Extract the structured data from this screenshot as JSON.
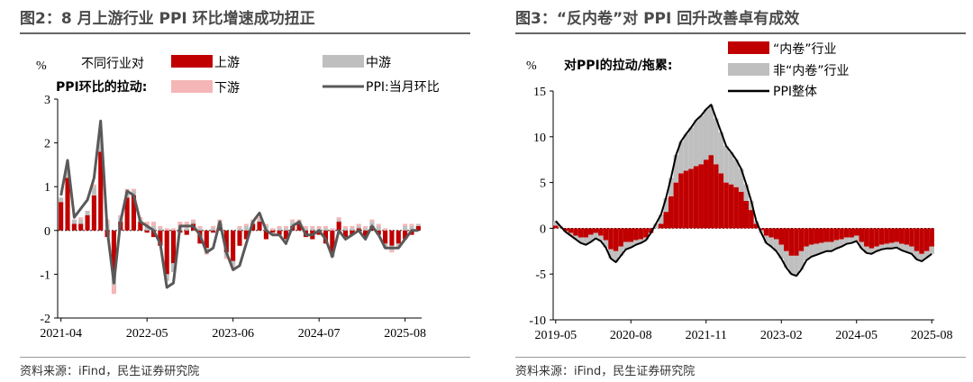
{
  "chart_data": [
    {
      "type": "bar",
      "title": "图2：8 月上游行业 PPI 环比增速成功扭正",
      "unit_label": "%",
      "ylabel_line1": "不同行业对",
      "ylabel_line2": "PPI环比的拉动:",
      "source": "资料来源：iFind，民生证券研究院",
      "ylim": [
        -2,
        3
      ],
      "yticks": [
        "3",
        "2",
        "1",
        "0",
        "-1",
        "-2"
      ],
      "ytick_values": [
        3,
        2,
        1,
        0,
        -1,
        -2
      ],
      "xtick_labels": [
        "2021-04",
        "2022-05",
        "2023-06",
        "2024-07",
        "2025-08"
      ],
      "xtick_indices": [
        0,
        13,
        26,
        39,
        52
      ],
      "legend": [
        "上游",
        "中游",
        "下游",
        "PPI:当月环比"
      ],
      "colors": {
        "upstream": "#c00000",
        "midstream": "#bfbfbf",
        "downstream": "#f4b6b6",
        "line": "#595959"
      },
      "series": [
        {
          "name": "上游",
          "values": [
            0.65,
            1.2,
            0.15,
            0.15,
            0.35,
            0.8,
            1.8,
            -0.15,
            -1.0,
            0.2,
            0.75,
            0.8,
            0.2,
            -0.05,
            -0.15,
            -0.35,
            -1.0,
            -0.75,
            -0.05,
            -0.1,
            0.15,
            -0.3,
            -0.4,
            -0.05,
            0.15,
            -0.5,
            -0.7,
            -0.35,
            -0.2,
            0.15,
            0.2,
            -0.2,
            -0.05,
            -0.1,
            -0.2,
            0.1,
            0.15,
            -0.15,
            -0.2,
            -0.1,
            -0.3,
            -0.5,
            0.2,
            -0.15,
            -0.1,
            0.05,
            -0.15,
            0.1,
            -0.1,
            -0.3,
            -0.35,
            -0.3,
            -0.2,
            -0.1,
            0.1
          ]
        },
        {
          "name": "中游",
          "values": [
            0.1,
            0.2,
            0.1,
            0.1,
            0.1,
            0.2,
            0.3,
            0.15,
            -0.25,
            0.1,
            0.15,
            0.1,
            0.05,
            0.1,
            0.1,
            0.05,
            -0.15,
            -0.2,
            0.1,
            0.05,
            0.05,
            0.05,
            -0.1,
            0.05,
            0.05,
            -0.1,
            -0.1,
            0.05,
            0.1,
            0.05,
            0.05,
            0.1,
            -0.05,
            0.05,
            0.05,
            0.1,
            0.05,
            0.05,
            0.05,
            0.05,
            0.05,
            -0.1,
            0.05,
            0.05,
            0.05,
            0.05,
            0.05,
            0.1,
            0.1,
            -0.1,
            -0.1,
            -0.05,
            0.1,
            0.1,
            0.05
          ]
        },
        {
          "name": "下游",
          "values": [
            0.0,
            0.0,
            0.0,
            0.05,
            0.0,
            0.05,
            0.1,
            0.1,
            -0.2,
            0.05,
            0.05,
            0.05,
            0.05,
            0.1,
            0.1,
            0.05,
            0.05,
            0.05,
            0.1,
            0.15,
            0.05,
            0.05,
            -0.05,
            0.05,
            0.05,
            -0.05,
            -0.05,
            0.05,
            0.05,
            0.05,
            0.05,
            0.05,
            0.05,
            0.05,
            0.05,
            0.05,
            0.05,
            0.05,
            0.05,
            0.05,
            0.05,
            0.05,
            0.05,
            0.05,
            0.05,
            0.05,
            0.05,
            0.05,
            0.05,
            0.05,
            -0.05,
            -0.05,
            0.05,
            0.05,
            0.0
          ]
        },
        {
          "name": "PPI:当月环比",
          "values": [
            0.8,
            1.6,
            0.3,
            0.5,
            0.7,
            1.2,
            2.5,
            0.0,
            -1.2,
            0.2,
            0.9,
            0.8,
            0.2,
            0.1,
            0.0,
            -0.3,
            -1.3,
            -1.2,
            0.1,
            0.1,
            0.1,
            -0.1,
            -0.5,
            -0.4,
            0.2,
            -0.5,
            -0.9,
            -0.8,
            -0.3,
            0.2,
            0.4,
            0.0,
            -0.1,
            -0.1,
            -0.3,
            0.1,
            0.2,
            -0.1,
            -0.1,
            0.0,
            -0.2,
            -0.6,
            0.0,
            -0.2,
            -0.1,
            0.0,
            -0.2,
            0.1,
            -0.1,
            -0.4,
            -0.4,
            -0.4,
            -0.2,
            0.0,
            0.0
          ]
        }
      ]
    },
    {
      "type": "area",
      "title": "图3：“反内卷”对 PPI 回升改善卓有成效",
      "unit_label": "%",
      "ylabel": "对PPI的拉动/拖累:",
      "source": "资料来源：iFind，民生证券研究院",
      "ylim": [
        -10,
        15
      ],
      "yticks": [
        "15",
        "10",
        "5",
        "0",
        "-5",
        "-10"
      ],
      "ytick_values": [
        15,
        10,
        5,
        0,
        -5,
        -10
      ],
      "xtick_labels": [
        "2019-05",
        "2020-08",
        "2021-11",
        "2023-02",
        "2024-05",
        "2025-08"
      ],
      "xtick_indices": [
        0,
        15,
        30,
        45,
        60,
        75
      ],
      "legend": [
        "“内卷”行业",
        "非“内卷”行业",
        "PPI整体"
      ],
      "colors": {
        "involution": "#c00000",
        "non_involution": "#bfbfbf",
        "total": "#000000"
      },
      "series": [
        {
          "name": "“内卷”行业",
          "values": [
            0.3,
            0.0,
            -0.3,
            -0.5,
            -0.8,
            -1.0,
            -1.0,
            -0.7,
            -0.5,
            -0.8,
            -1.3,
            -2.3,
            -2.5,
            -2.0,
            -1.5,
            -1.5,
            -1.3,
            -1.2,
            -1.0,
            -0.5,
            0.0,
            0.5,
            1.8,
            3.5,
            5.0,
            6.0,
            6.3,
            6.5,
            6.8,
            7.0,
            7.5,
            8.0,
            7.0,
            6.0,
            5.0,
            4.8,
            4.5,
            4.0,
            3.0,
            2.0,
            0.5,
            -0.2,
            -0.8,
            -1.0,
            -1.2,
            -1.8,
            -2.5,
            -3.0,
            -3.0,
            -2.5,
            -2.0,
            -1.8,
            -1.7,
            -1.6,
            -1.5,
            -1.5,
            -1.3,
            -1.2,
            -1.0,
            -1.0,
            -0.8,
            -1.5,
            -2.0,
            -2.2,
            -2.0,
            -1.8,
            -1.7,
            -1.6,
            -1.5,
            -1.7,
            -1.8,
            -2.0,
            -2.5,
            -2.8,
            -2.5,
            -2.0
          ]
        },
        {
          "name": "非“内卷”行业",
          "values": [
            0.5,
            0.2,
            -0.1,
            -0.3,
            -0.4,
            -0.6,
            -0.8,
            -0.8,
            -0.6,
            -0.6,
            -0.8,
            -1.0,
            -1.2,
            -1.0,
            -0.8,
            -0.6,
            -0.5,
            -0.4,
            -0.3,
            0.0,
            0.5,
            1.0,
            1.5,
            2.0,
            3.0,
            3.5,
            4.0,
            4.5,
            5.0,
            5.3,
            5.5,
            5.5,
            5.0,
            4.5,
            4.0,
            3.5,
            3.0,
            2.5,
            1.8,
            1.0,
            0.3,
            -0.3,
            -0.8,
            -1.0,
            -1.3,
            -1.5,
            -1.8,
            -2.0,
            -2.2,
            -2.0,
            -1.5,
            -1.3,
            -1.2,
            -1.1,
            -1.0,
            -1.0,
            -0.9,
            -0.8,
            -0.7,
            -0.6,
            -0.6,
            -0.7,
            -0.7,
            -0.6,
            -0.5,
            -0.5,
            -0.5,
            -0.6,
            -0.6,
            -0.7,
            -0.8,
            -0.8,
            -0.9,
            -0.8,
            -0.7,
            -0.8
          ]
        },
        {
          "name": "PPI整体",
          "values": [
            0.8,
            0.2,
            -0.4,
            -0.8,
            -1.2,
            -1.6,
            -1.8,
            -1.5,
            -1.1,
            -1.4,
            -2.1,
            -3.3,
            -3.7,
            -3.0,
            -2.3,
            -2.1,
            -1.8,
            -1.6,
            -1.3,
            -0.5,
            0.5,
            1.5,
            3.3,
            5.5,
            8.0,
            9.5,
            10.3,
            11.0,
            11.8,
            12.3,
            13.0,
            13.5,
            12.0,
            10.5,
            9.0,
            8.3,
            7.5,
            6.5,
            4.8,
            3.0,
            0.8,
            -0.5,
            -1.6,
            -2.0,
            -2.5,
            -3.3,
            -4.3,
            -5.0,
            -5.2,
            -4.5,
            -3.5,
            -3.1,
            -2.9,
            -2.7,
            -2.5,
            -2.5,
            -2.2,
            -2.0,
            -1.7,
            -1.6,
            -1.4,
            -2.2,
            -2.7,
            -2.8,
            -2.5,
            -2.3,
            -2.2,
            -2.2,
            -2.1,
            -2.4,
            -2.6,
            -2.8,
            -3.4,
            -3.6,
            -3.2,
            -2.8
          ]
        }
      ]
    }
  ]
}
